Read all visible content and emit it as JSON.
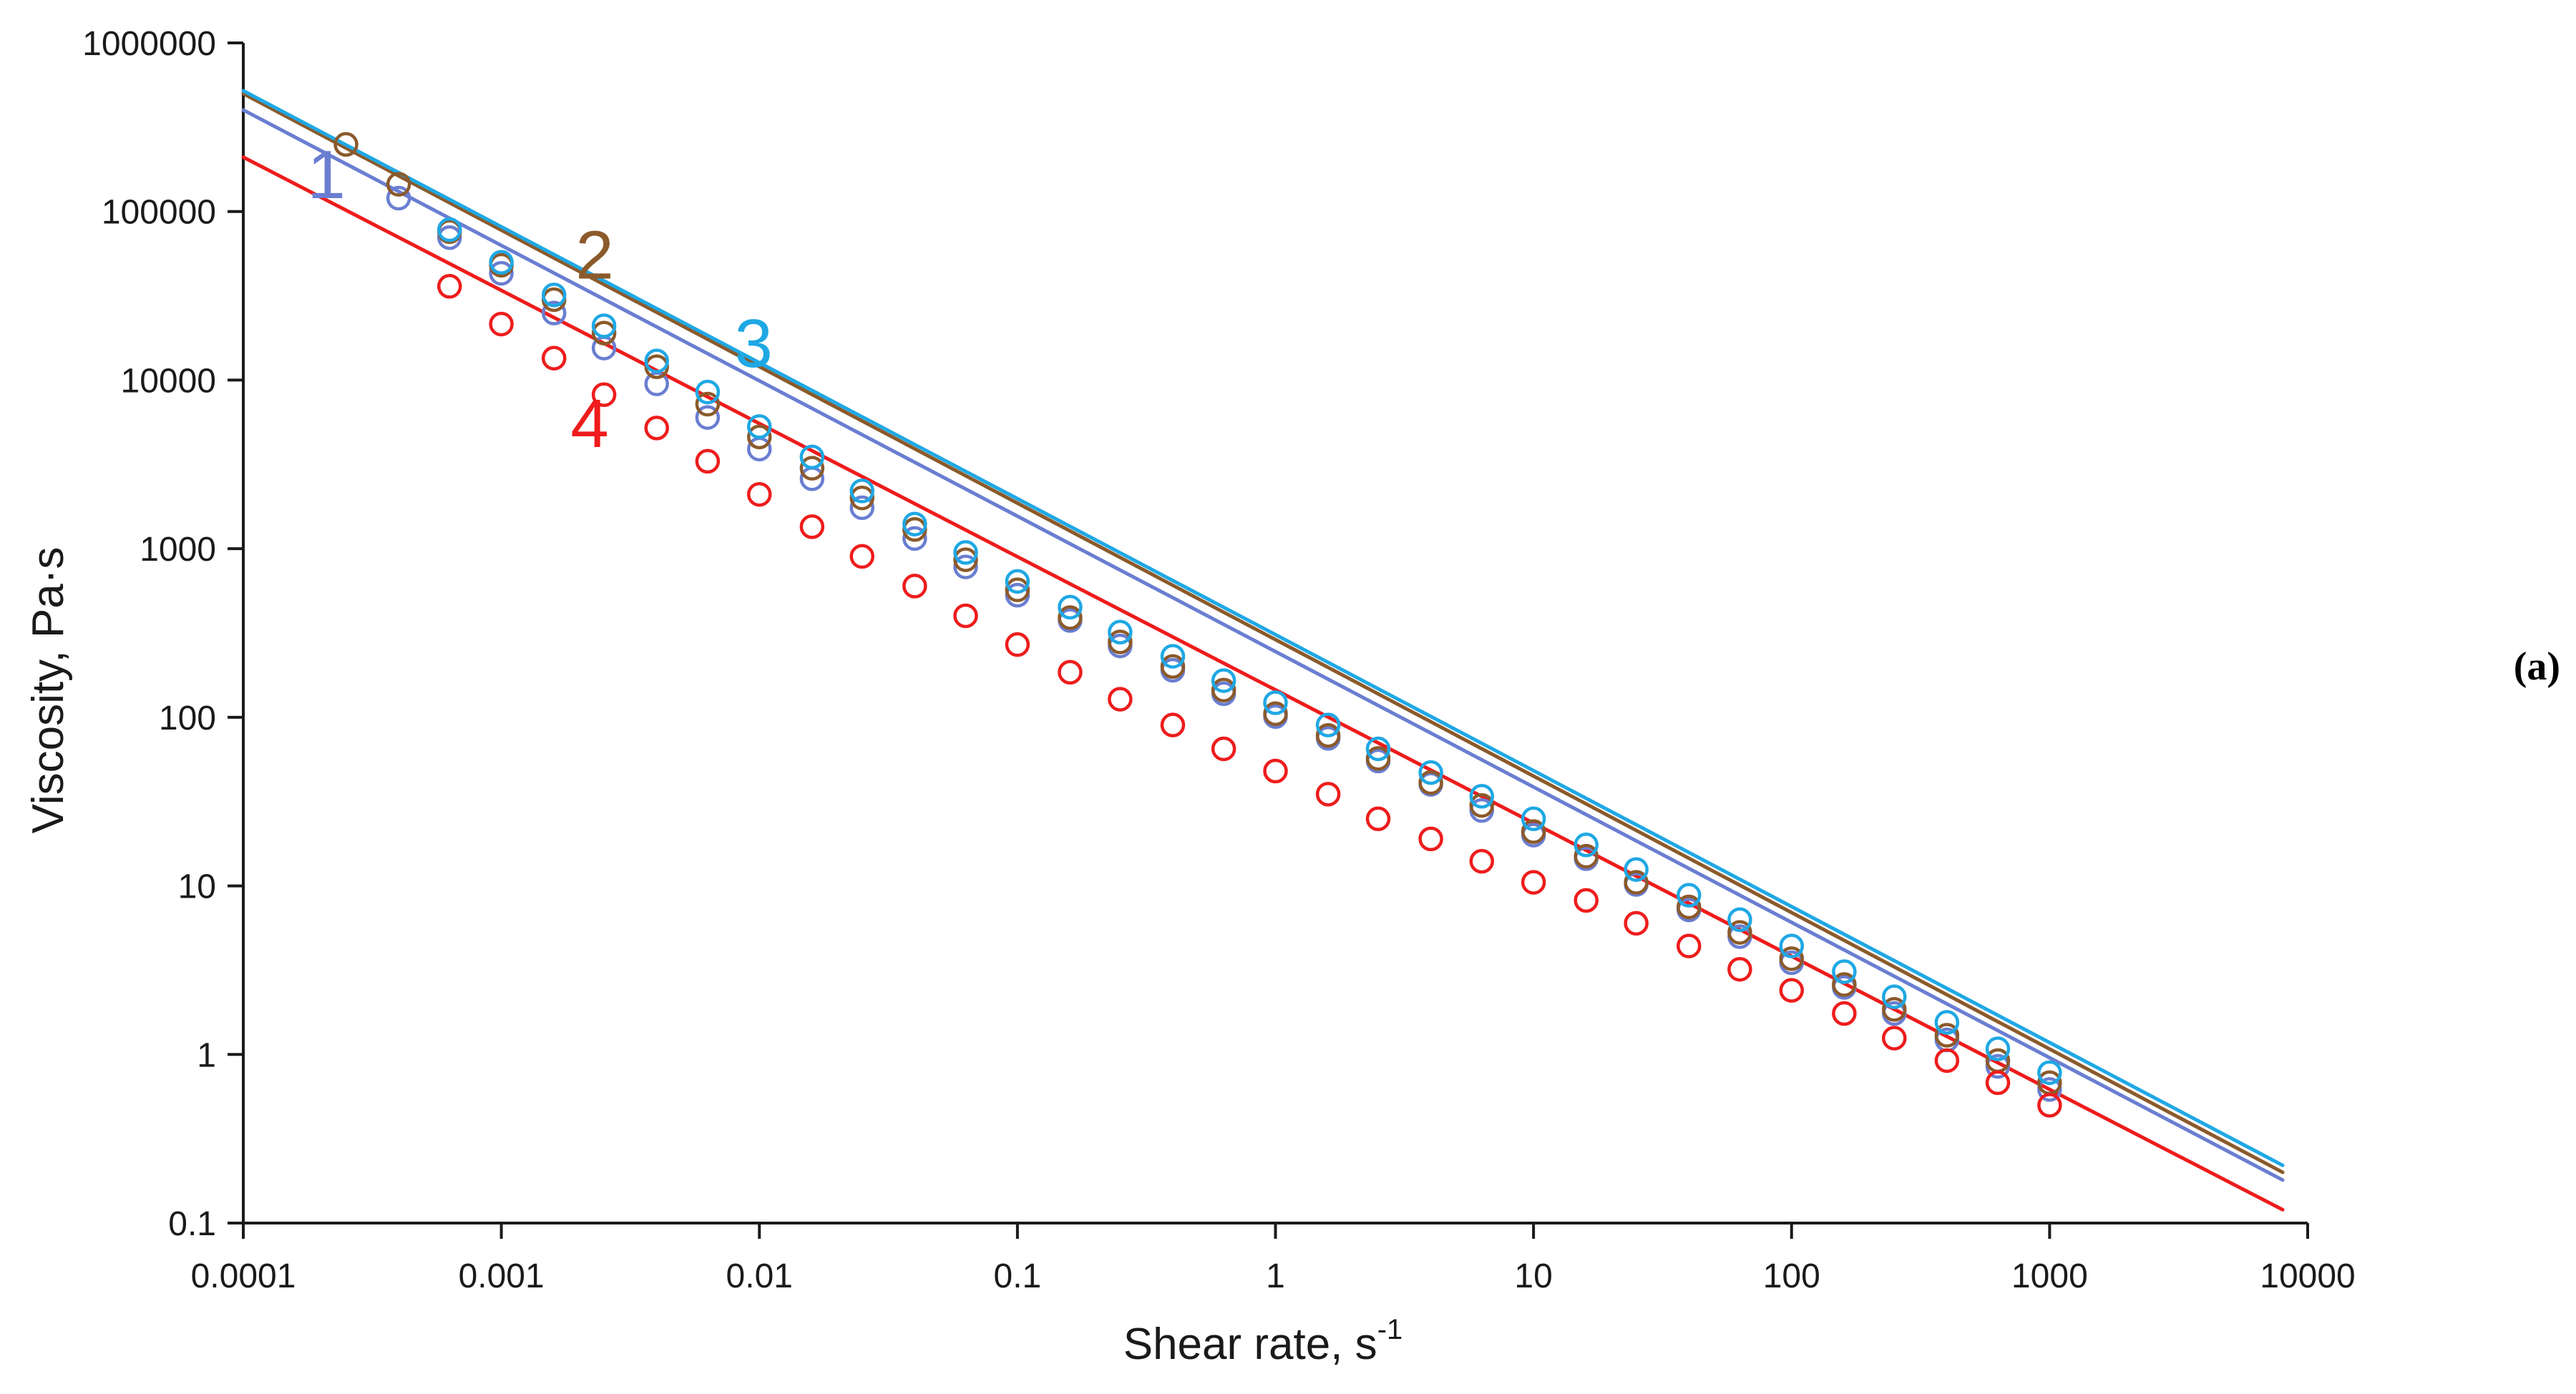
{
  "panel_label": "(a)",
  "chart_data": {
    "type": "scatter",
    "title": "",
    "xlabel": "Shear rate, s",
    "xlabel_superscript": "-1",
    "ylabel": "Viscosity, Pa·s",
    "xscale": "log",
    "yscale": "log",
    "xlim": [
      0.0001,
      10000
    ],
    "ylim": [
      0.1,
      1000000
    ],
    "grid": false,
    "legend": "none (curves labelled inline with numbers 1-4)",
    "x_tick_labels": [
      "0.0001",
      "0.001",
      "0.01",
      "0.1",
      "1",
      "10",
      "100",
      "1000",
      "10000"
    ],
    "y_tick_labels": [
      "0.1",
      "1",
      "10",
      "100",
      "1000",
      "10000",
      "100000",
      "1000000"
    ],
    "series": [
      {
        "name": "1",
        "color": "#6a7ed1",
        "fit_line": {
          "x": [
            0.0001,
            8000
          ],
          "y": [
            400000,
            0.18
          ]
        },
        "label_at": {
          "x": 0.00021,
          "y": 120000
        },
        "points": {
          "x": [
            0.0004,
            0.00063,
            0.001,
            0.0016,
            0.0025,
            0.004,
            0.0063,
            0.01,
            0.016,
            0.025,
            0.04,
            0.063,
            0.1,
            0.16,
            0.25,
            0.4,
            0.63,
            1,
            1.6,
            2.5,
            4,
            6.3,
            10,
            16,
            25,
            40,
            63,
            100,
            160,
            250,
            400,
            630,
            1000
          ],
          "y": [
            120000,
            70000,
            43000,
            25000,
            15500,
            9500,
            6000,
            3900,
            2600,
            1750,
            1150,
            780,
            530,
            375,
            265,
            190,
            138,
            101,
            75,
            55,
            40,
            28,
            20,
            14.5,
            10.2,
            7.2,
            5.0,
            3.5,
            2.5,
            1.75,
            1.22,
            0.85,
            0.62
          ]
        }
      },
      {
        "name": "2",
        "color": "#8b5a2b",
        "fit_line": {
          "x": [
            0.0001,
            8000
          ],
          "y": [
            500000,
            0.2
          ]
        },
        "label_at": {
          "x": 0.0023,
          "y": 40000
        },
        "points": {
          "x": [
            0.00025,
            0.0004,
            0.00063,
            0.001,
            0.0016,
            0.0025,
            0.004,
            0.0063,
            0.01,
            0.016,
            0.025,
            0.04,
            0.063,
            0.1,
            0.16,
            0.25,
            0.4,
            0.63,
            1,
            1.6,
            2.5,
            4,
            6.3,
            10,
            16,
            25,
            40,
            63,
            100,
            160,
            250,
            400,
            630,
            1000
          ],
          "y": [
            250000,
            145000,
            76000,
            48000,
            30000,
            19000,
            12000,
            7200,
            4600,
            3000,
            2000,
            1300,
            860,
            570,
            390,
            280,
            200,
            145,
            105,
            78,
            57,
            41,
            30,
            21,
            15,
            10.5,
            7.5,
            5.3,
            3.7,
            2.6,
            1.85,
            1.3,
            0.92,
            0.68
          ]
        }
      },
      {
        "name": "3",
        "color": "#1fa8e4",
        "fit_line": {
          "x": [
            0.0001,
            8000
          ],
          "y": [
            520000,
            0.22
          ]
        },
        "label_at": {
          "x": 0.0095,
          "y": 12000
        },
        "points": {
          "x": [
            0.00063,
            0.001,
            0.0016,
            0.0025,
            0.004,
            0.0063,
            0.01,
            0.016,
            0.025,
            0.04,
            0.063,
            0.1,
            0.16,
            0.25,
            0.4,
            0.63,
            1,
            1.6,
            2.5,
            4,
            6.3,
            10,
            16,
            25,
            40,
            63,
            100,
            160,
            250,
            400,
            630,
            1000
          ],
          "y": [
            78000,
            50000,
            32000,
            21000,
            13000,
            8500,
            5300,
            3500,
            2200,
            1400,
            950,
            640,
            450,
            320,
            230,
            165,
            122,
            90,
            65,
            47,
            34,
            25,
            17.5,
            12.5,
            8.8,
            6.3,
            4.4,
            3.1,
            2.2,
            1.55,
            1.08,
            0.78
          ]
        }
      },
      {
        "name": "4",
        "color": "#ee1c1c",
        "fit_line": {
          "x": [
            0.0001,
            8000
          ],
          "y": [
            210000,
            0.12
          ]
        },
        "label_at": {
          "x": 0.0022,
          "y": 4000
        },
        "points": {
          "x": [
            0.00063,
            0.001,
            0.0016,
            0.0025,
            0.004,
            0.0063,
            0.01,
            0.016,
            0.025,
            0.04,
            0.063,
            0.1,
            0.16,
            0.25,
            0.4,
            0.63,
            1,
            1.6,
            2.5,
            4,
            6.3,
            10,
            16,
            25,
            40,
            63,
            100,
            160,
            250,
            400,
            630,
            1000
          ],
          "y": [
            36000,
            21500,
            13500,
            8200,
            5200,
            3300,
            2100,
            1350,
            900,
            600,
            400,
            270,
            185,
            128,
            90,
            65,
            48,
            35,
            25,
            19,
            14,
            10.5,
            8.2,
            6.0,
            4.4,
            3.2,
            2.4,
            1.75,
            1.25,
            0.92,
            0.68,
            0.5
          ]
        }
      }
    ]
  }
}
